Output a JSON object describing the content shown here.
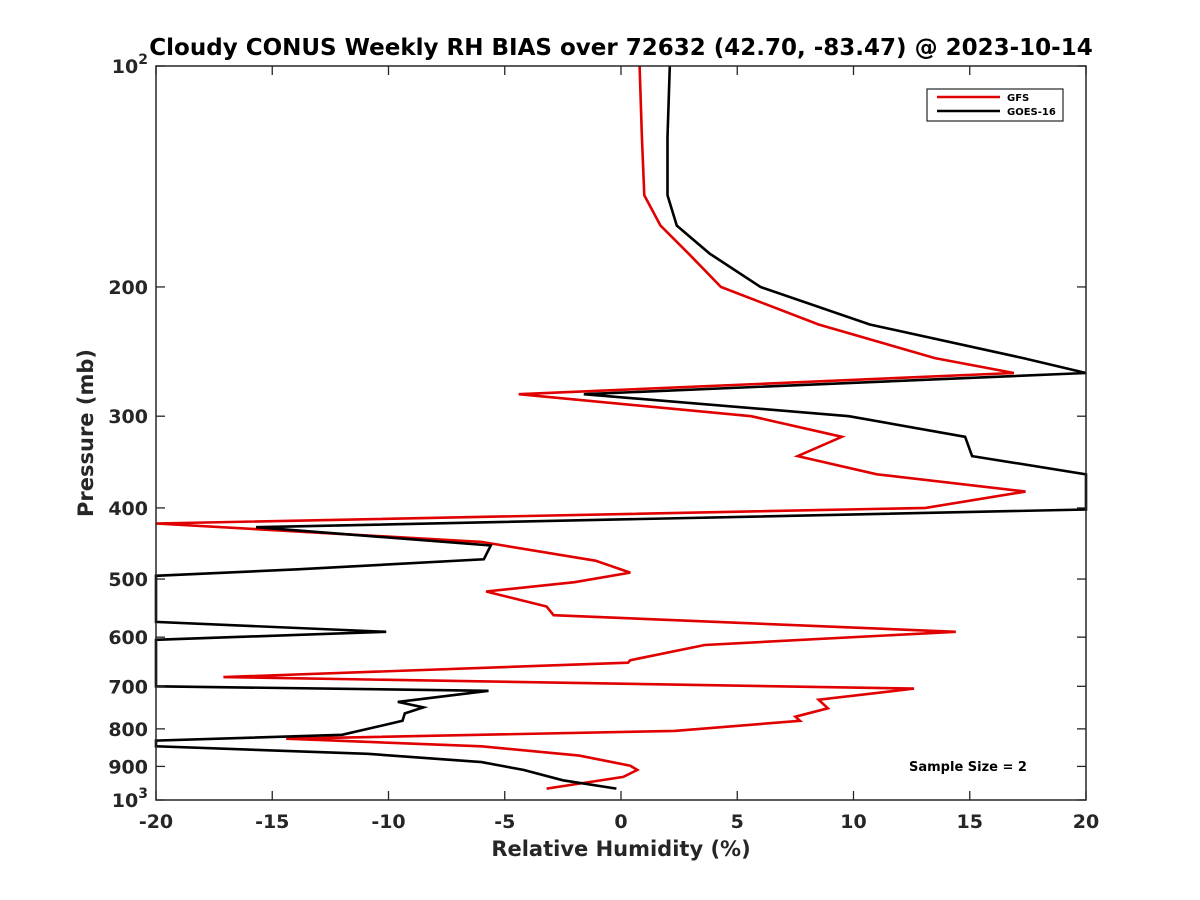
{
  "chart_data": {
    "type": "line",
    "title": "Cloudy CONUS Weekly RH BIAS over 72632 (42.70, -83.47) @ 2023-10-14",
    "xlabel": "Relative Humidity (%)",
    "ylabel": "Pressure (mb)",
    "xlim": [
      -20,
      20
    ],
    "ylim": [
      1000,
      100
    ],
    "y_scale": "log",
    "y_reversed": true,
    "x_ticks": [
      -20,
      -15,
      -10,
      -5,
      0,
      5,
      10,
      15,
      20
    ],
    "x_tick_labels": [
      "-20",
      "-15",
      "-10",
      "-5",
      "0",
      "5",
      "10",
      "15",
      "20"
    ],
    "y_ticks": [
      100,
      200,
      300,
      400,
      500,
      600,
      700,
      800,
      900,
      1000
    ],
    "y_tick_labels": [
      {
        "base": "10",
        "exp": "2"
      },
      {
        "base": "200",
        "exp": ""
      },
      {
        "base": "300",
        "exp": ""
      },
      {
        "base": "400",
        "exp": ""
      },
      {
        "base": "500",
        "exp": ""
      },
      {
        "base": "600",
        "exp": ""
      },
      {
        "base": "700",
        "exp": ""
      },
      {
        "base": "800",
        "exp": ""
      },
      {
        "base": "900",
        "exp": ""
      },
      {
        "base": "10",
        "exp": "3"
      }
    ],
    "legend_position": "top-right",
    "grid": false,
    "annotation": "Sample Size = 2",
    "series": [
      {
        "name": "GFS",
        "color": "#e00000",
        "points": [
          [
            0.8,
            100
          ],
          [
            0.9,
            125
          ],
          [
            1.0,
            150
          ],
          [
            1.7,
            165
          ],
          [
            2.9,
            180
          ],
          [
            4.3,
            200
          ],
          [
            8.5,
            225
          ],
          [
            13.5,
            250
          ],
          [
            16.9,
            262
          ],
          [
            -4.4,
            280
          ],
          [
            5.6,
            300
          ],
          [
            9.5,
            320
          ],
          [
            7.6,
            340
          ],
          [
            11.0,
            360
          ],
          [
            17.4,
            380
          ],
          [
            13.1,
            400
          ],
          [
            -20.0,
            420
          ],
          [
            -6.0,
            445
          ],
          [
            -1.1,
            472
          ],
          [
            0.4,
            490
          ],
          [
            -2.0,
            505
          ],
          [
            -5.8,
            520
          ],
          [
            -3.2,
            545
          ],
          [
            -2.9,
            560
          ],
          [
            14.4,
            590
          ],
          [
            3.6,
            615
          ],
          [
            0.4,
            645
          ],
          [
            0.3,
            650
          ],
          [
            -17.1,
            680
          ],
          [
            12.6,
            705
          ],
          [
            8.5,
            730
          ],
          [
            8.9,
            750
          ],
          [
            7.5,
            770
          ],
          [
            7.7,
            780
          ],
          [
            2.3,
            805
          ],
          [
            -14.4,
            825
          ],
          [
            -6.0,
            845
          ],
          [
            -1.8,
            870
          ],
          [
            0.4,
            898
          ],
          [
            0.7,
            910
          ],
          [
            0.1,
            930
          ],
          [
            -3.2,
            965
          ]
        ]
      },
      {
        "name": "GOES-16",
        "color": "#000000",
        "points": [
          [
            2.1,
            100
          ],
          [
            2.0,
            125
          ],
          [
            2.0,
            150
          ],
          [
            2.4,
            165
          ],
          [
            3.8,
            180
          ],
          [
            6.0,
            200
          ],
          [
            10.7,
            225
          ],
          [
            17.3,
            250
          ],
          [
            20.0,
            262
          ],
          [
            -1.6,
            280
          ],
          [
            9.8,
            300
          ],
          [
            14.8,
            320
          ],
          [
            15.1,
            340
          ],
          [
            20.0,
            360
          ],
          [
            20.0,
            402
          ],
          [
            -15.7,
            425
          ],
          [
            -5.6,
            450
          ],
          [
            -5.9,
            470
          ],
          [
            -13.9,
            485
          ],
          [
            -20.0,
            495
          ],
          [
            -20.0,
            572
          ],
          [
            -10.1,
            590
          ],
          [
            -20.0,
            605
          ],
          [
            -20.0,
            700
          ],
          [
            -5.7,
            710
          ],
          [
            -9.6,
            735
          ],
          [
            -8.5,
            748
          ],
          [
            -9.3,
            762
          ],
          [
            -9.4,
            780
          ],
          [
            -12.0,
            815
          ],
          [
            -20.0,
            830
          ],
          [
            -20.0,
            845
          ],
          [
            -10.9,
            865
          ],
          [
            -6.0,
            888
          ],
          [
            -4.2,
            910
          ],
          [
            -2.5,
            940
          ],
          [
            -0.2,
            965
          ]
        ]
      }
    ]
  }
}
